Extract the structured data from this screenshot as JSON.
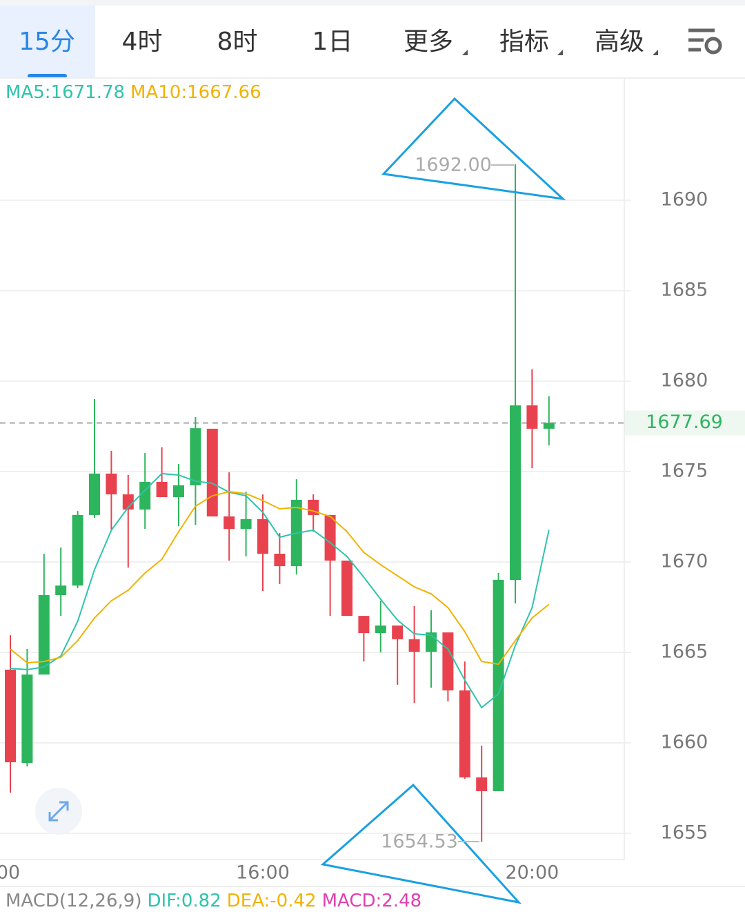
{
  "tabs": [
    "15分",
    "4时",
    "8时",
    "1日",
    "更多",
    "指标",
    "高级"
  ],
  "chart_data": {
    "type": "candlestick",
    "legend": [
      {
        "text": "MA5:1671.78",
        "color": "#2fc3ac"
      },
      {
        "text": "MA10:1667.66",
        "color": "#f2b200"
      }
    ],
    "categories": [
      null,
      null,
      null,
      null,
      null,
      null,
      null,
      null,
      null,
      null,
      null,
      null,
      null,
      null,
      null,
      "16:00",
      null,
      null,
      null,
      null,
      null,
      null,
      null,
      null,
      null,
      null,
      null,
      null,
      null,
      null,
      null,
      "20:00",
      null
    ],
    "cut_x_label": "00",
    "open": [
      1664.05,
      1658.89,
      1663.78,
      1668.17,
      1668.7,
      1672.6,
      1674.89,
      1673.74,
      1672.9,
      1674.43,
      1673.59,
      1674.24,
      1677.37,
      1672.52,
      1671.83,
      1672.37,
      1670.46,
      1669.77,
      1673.44,
      1672.6,
      1670.08,
      1667.02,
      1666.07,
      1666.49,
      1665.73,
      1665.04,
      1666.11,
      1662.9,
      1658.09,
      1657.33,
      1669.01,
      1678.66,
      1677.37
    ],
    "high": [
      1665.95,
      1665.19,
      1670.46,
      1670.8,
      1672.82,
      1679.01,
      1676.15,
      1674.81,
      1676.03,
      1676.34,
      1675.42,
      1678.02,
      1677.37,
      1674.96,
      1673.89,
      1673.74,
      1671.6,
      1674.58,
      1673.74,
      1672.6,
      1670.08,
      1667.02,
      1667.86,
      1666.49,
      1667.56,
      1667.33,
      1666.11,
      1664.5,
      1659.85,
      1669.39,
      1692.0,
      1680.65,
      1679.16
    ],
    "low": [
      1657.25,
      1658.7,
      1663.78,
      1667.02,
      1668.55,
      1672.44,
      1671.79,
      1669.69,
      1671.83,
      1673.59,
      1671.98,
      1672.06,
      1672.52,
      1670.08,
      1670.31,
      1668.4,
      1668.78,
      1669.31,
      1671.68,
      1667.02,
      1667.02,
      1664.5,
      1665.0,
      1663.21,
      1662.21,
      1663.05,
      1662.29,
      1658.02,
      1654.53,
      1657.33,
      1667.71,
      1675.19,
      1676.45
    ],
    "close": [
      1658.93,
      1663.78,
      1668.17,
      1668.7,
      1672.6,
      1674.89,
      1673.74,
      1672.9,
      1674.43,
      1673.59,
      1674.24,
      1677.4,
      1672.52,
      1671.83,
      1672.37,
      1670.46,
      1669.77,
      1673.44,
      1672.6,
      1670.08,
      1667.02,
      1666.07,
      1666.49,
      1665.73,
      1665.04,
      1666.11,
      1662.9,
      1658.09,
      1657.33,
      1669.01,
      1678.66,
      1677.37,
      1677.69
    ],
    "up_color": "#2db55d",
    "down_color": "#e9424f",
    "lines": [
      {
        "color": "#2fc3ac",
        "values": [
          1664.12,
          1664.05,
          1664.2,
          1664.81,
          1666.72,
          1669.58,
          1671.76,
          1673.02,
          1673.97,
          1674.89,
          1674.81,
          1674.47,
          1674.35,
          1673.86,
          1673.66,
          1672.75,
          1671.37,
          1671.6,
          1671.76,
          1671.07,
          1670.31,
          1669.16,
          1667.94,
          1666.79,
          1666.03,
          1665.95,
          1665.19,
          1663.47,
          1661.95,
          1662.71,
          1665.38,
          1667.48,
          1671.78
        ]
      },
      {
        "color": "#f2b200",
        "values": [
          1665.19,
          1664.43,
          1664.5,
          1664.73,
          1665.65,
          1666.91,
          1667.86,
          1668.44,
          1669.39,
          1670.15,
          1671.68,
          1673.09,
          1673.66,
          1673.89,
          1673.78,
          1673.4,
          1672.94,
          1673.02,
          1672.82,
          1672.52,
          1671.68,
          1670.53,
          1669.85,
          1669.24,
          1668.63,
          1668.24,
          1667.48,
          1666.15,
          1664.5,
          1664.35,
          1665.65,
          1666.91,
          1667.66
        ]
      }
    ],
    "ylim": [
      1653.55,
      1696.76
    ],
    "yticks": [
      1655,
      1660,
      1665,
      1670,
      1675,
      1680,
      1685,
      1690
    ],
    "grid": true,
    "last_price": {
      "value": 1677.69,
      "label": "1677.69"
    },
    "annotations": [
      "1692.00",
      "1654.53"
    ],
    "macd": [
      {
        "text": "MACD(12,26,9)",
        "color": "#888"
      },
      {
        "text": "DIF:0.82",
        "color": "#2fc3ac"
      },
      {
        "text": "DEA:-0.42",
        "color": "#f2b200"
      },
      {
        "text": "MACD:2.48",
        "color": "#e040b0"
      }
    ]
  }
}
